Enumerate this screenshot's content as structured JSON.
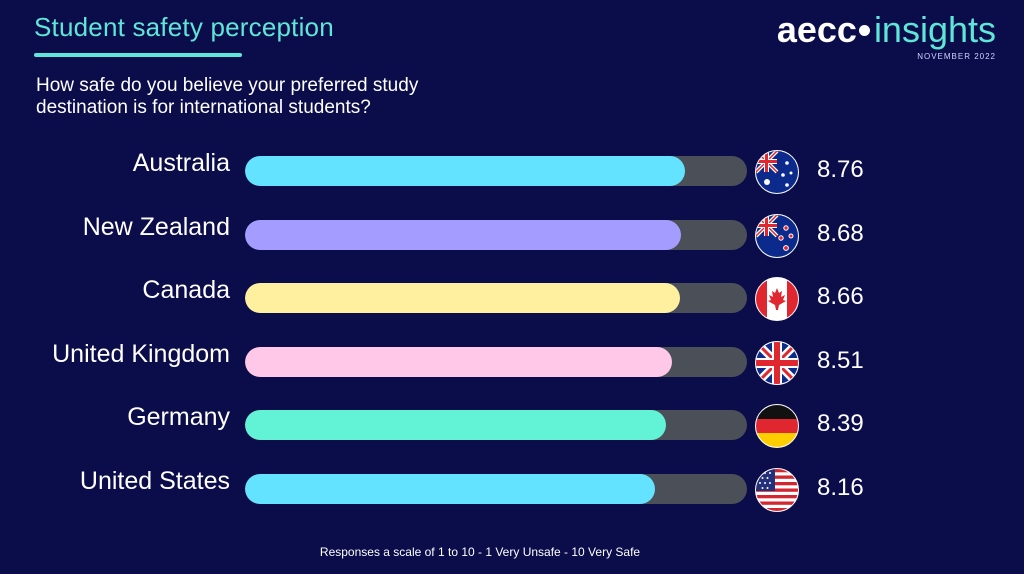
{
  "header": {
    "title": "Student safety perception",
    "subtitle": "How safe do you believe your preferred study destination is for international students?"
  },
  "brand": {
    "aecc": "aecc",
    "insights": "insights",
    "date": "NOVEMBER 2022"
  },
  "footnote": "Responses a scale of 1 to 10 - 1 Very Unsafe - 10 Very Safe",
  "chart_data": {
    "type": "bar",
    "orientation": "horizontal",
    "title": "Student safety perception",
    "subtitle": "How safe do you believe your preferred study destination is for international students?",
    "xlabel": "",
    "ylabel": "",
    "xlim": [
      0,
      10
    ],
    "grid": false,
    "categories": [
      "Australia",
      "New Zealand",
      "Canada",
      "United Kingdom",
      "Germany",
      "United States"
    ],
    "values": [
      8.76,
      8.68,
      8.66,
      8.51,
      8.39,
      8.16
    ],
    "value_labels": [
      "8.76",
      "8.68",
      "8.66",
      "8.51",
      "8.39",
      "8.16"
    ],
    "colors": [
      "#63e3ff",
      "#a49cff",
      "#fff0a0",
      "#ffc7e8",
      "#62f3d6",
      "#63e3ff"
    ],
    "flag_icons": [
      "australia-flag-icon",
      "new-zealand-flag-icon",
      "canada-flag-icon",
      "united-kingdom-flag-icon",
      "germany-flag-icon",
      "united-states-flag-icon"
    ],
    "track_color": "#4b4f57"
  }
}
